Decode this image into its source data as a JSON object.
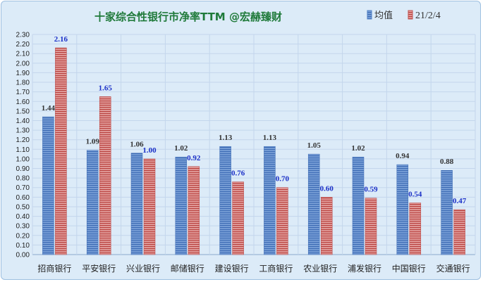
{
  "chart_data": {
    "type": "bar",
    "title": "十家综合性银行市净率TTM   @宏赫臻财",
    "categories": [
      "招商银行",
      "平安银行",
      "兴业银行",
      "邮储银行",
      "建设银行",
      "工商银行",
      "农业银行",
      "浦发银行",
      "中国银行",
      "交通银行"
    ],
    "series": [
      {
        "name": "均值",
        "color": "#4f7fc4",
        "values": [
          1.44,
          1.09,
          1.06,
          1.02,
          1.13,
          1.13,
          1.05,
          1.02,
          0.94,
          0.88
        ],
        "labels": [
          "1.44",
          "1.09",
          "1.06",
          "1.02",
          "1.13",
          "1.13",
          "1.05",
          "1.02",
          "0.94",
          "0.88"
        ]
      },
      {
        "name": "21/2/4",
        "color": "#c0504d",
        "values": [
          2.16,
          1.65,
          1.0,
          0.92,
          0.76,
          0.7,
          0.6,
          0.59,
          0.54,
          0.47
        ],
        "labels": [
          "2.16",
          "1.65",
          "1.00",
          "0.92",
          "0.76",
          "0.70",
          "0.60",
          "0.59",
          "0.54",
          "0.47"
        ]
      }
    ],
    "ylim": [
      0,
      2.3
    ],
    "yticks": [
      "0.00",
      "0.10",
      "0.20",
      "0.30",
      "0.40",
      "0.50",
      "0.60",
      "0.70",
      "0.80",
      "0.90",
      "1.00",
      "1.10",
      "1.20",
      "1.30",
      "1.40",
      "1.50",
      "1.60",
      "1.70",
      "1.80",
      "1.90",
      "2.00",
      "2.10",
      "2.20",
      "2.30"
    ],
    "grid": true,
    "legend_position": "top-right",
    "label_colors": {
      "avg": "#333333",
      "current": "#1a2fc7"
    }
  }
}
